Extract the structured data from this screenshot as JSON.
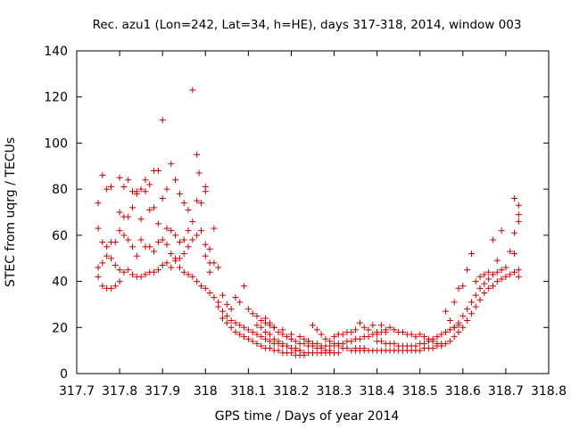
{
  "chart_data": {
    "type": "scatter",
    "title": "Rec. azu1 (Lon=242, Lat=34, h=HE), days 317-318, 2014, window 003",
    "xlabel": "GPS time / Days of year 2014",
    "ylabel": "STEC from uqrg / TECUs",
    "xlim": [
      317.7,
      318.8
    ],
    "ylim": [
      0,
      140
    ],
    "xticks": [
      {
        "v": 317.7,
        "label": "317.7"
      },
      {
        "v": 317.8,
        "label": "317.8"
      },
      {
        "v": 317.9,
        "label": "317.9"
      },
      {
        "v": 318.0,
        "label": "318"
      },
      {
        "v": 318.1,
        "label": "318.1"
      },
      {
        "v": 318.2,
        "label": "318.2"
      },
      {
        "v": 318.3,
        "label": "318.3"
      },
      {
        "v": 318.4,
        "label": "318.4"
      },
      {
        "v": 318.5,
        "label": "318.5"
      },
      {
        "v": 318.6,
        "label": "318.6"
      },
      {
        "v": 318.7,
        "label": "318.7"
      },
      {
        "v": 318.8,
        "label": "318.8"
      }
    ],
    "yticks": [
      {
        "v": 0,
        "label": "0"
      },
      {
        "v": 20,
        "label": "20"
      },
      {
        "v": 40,
        "label": "40"
      },
      {
        "v": 60,
        "label": "60"
      },
      {
        "v": 80,
        "label": "80"
      },
      {
        "v": 100,
        "label": "100"
      },
      {
        "v": 120,
        "label": "120"
      },
      {
        "v": 140,
        "label": "140"
      }
    ],
    "grid": false,
    "marker": "+",
    "color": "#cc0000",
    "points": [
      [
        317.75,
        74
      ],
      [
        317.76,
        86
      ],
      [
        317.77,
        80
      ],
      [
        317.78,
        81
      ],
      [
        317.75,
        63
      ],
      [
        317.76,
        57
      ],
      [
        317.77,
        55
      ],
      [
        317.78,
        57
      ],
      [
        317.79,
        57
      ],
      [
        317.75,
        46
      ],
      [
        317.76,
        48
      ],
      [
        317.77,
        51
      ],
      [
        317.78,
        50
      ],
      [
        317.79,
        47
      ],
      [
        317.75,
        42
      ],
      [
        317.76,
        38
      ],
      [
        317.77,
        37
      ],
      [
        317.78,
        37
      ],
      [
        317.79,
        38
      ],
      [
        317.8,
        40
      ],
      [
        317.8,
        85
      ],
      [
        317.81,
        81
      ],
      [
        317.82,
        84
      ],
      [
        317.83,
        79
      ],
      [
        317.84,
        79
      ],
      [
        317.85,
        80
      ],
      [
        317.86,
        84
      ],
      [
        317.87,
        82
      ],
      [
        317.88,
        88
      ],
      [
        317.89,
        88
      ],
      [
        317.9,
        110
      ],
      [
        317.91,
        80
      ],
      [
        317.92,
        91
      ],
      [
        317.93,
        84
      ],
      [
        317.94,
        78
      ],
      [
        317.95,
        74
      ],
      [
        317.96,
        71
      ],
      [
        317.97,
        123
      ],
      [
        317.98,
        95
      ],
      [
        317.985,
        87
      ],
      [
        317.8,
        70
      ],
      [
        317.81,
        68
      ],
      [
        317.82,
        68
      ],
      [
        317.83,
        72
      ],
      [
        317.84,
        78
      ],
      [
        317.85,
        67
      ],
      [
        317.86,
        79
      ],
      [
        317.87,
        71
      ],
      [
        317.88,
        72
      ],
      [
        317.89,
        65
      ],
      [
        317.9,
        76
      ],
      [
        317.91,
        63
      ],
      [
        317.92,
        62
      ],
      [
        317.93,
        60
      ],
      [
        317.94,
        57
      ],
      [
        317.95,
        58
      ],
      [
        317.96,
        62
      ],
      [
        317.97,
        66
      ],
      [
        317.98,
        75
      ],
      [
        317.99,
        74
      ],
      [
        317.8,
        62
      ],
      [
        317.81,
        60
      ],
      [
        317.82,
        58
      ],
      [
        317.83,
        55
      ],
      [
        317.84,
        51
      ],
      [
        317.85,
        58
      ],
      [
        317.86,
        55
      ],
      [
        317.87,
        55
      ],
      [
        317.88,
        53
      ],
      [
        317.89,
        57
      ],
      [
        317.9,
        58
      ],
      [
        317.91,
        56
      ],
      [
        317.92,
        52
      ],
      [
        317.93,
        50
      ],
      [
        317.94,
        46
      ],
      [
        317.95,
        44
      ],
      [
        317.96,
        43
      ],
      [
        317.97,
        42
      ],
      [
        317.98,
        40
      ],
      [
        317.99,
        38
      ],
      [
        317.8,
        45
      ],
      [
        317.81,
        44
      ],
      [
        317.82,
        45
      ],
      [
        317.83,
        43
      ],
      [
        317.84,
        42
      ],
      [
        317.85,
        42
      ],
      [
        317.86,
        43
      ],
      [
        317.87,
        44
      ],
      [
        317.88,
        44
      ],
      [
        317.89,
        45
      ],
      [
        317.9,
        47
      ],
      [
        317.91,
        48
      ],
      [
        317.92,
        46
      ],
      [
        317.93,
        49
      ],
      [
        317.94,
        50
      ],
      [
        317.95,
        52
      ],
      [
        317.96,
        55
      ],
      [
        317.97,
        58
      ],
      [
        317.98,
        60
      ],
      [
        317.99,
        62
      ],
      [
        318.0,
        81
      ],
      [
        318.0,
        79
      ],
      [
        318.0,
        56
      ],
      [
        318.01,
        54
      ],
      [
        318.0,
        51
      ],
      [
        318.01,
        48
      ],
      [
        318.01,
        44
      ],
      [
        318.02,
        63
      ],
      [
        318.02,
        48
      ],
      [
        318.03,
        46
      ],
      [
        318.0,
        37
      ],
      [
        318.01,
        35
      ],
      [
        318.02,
        33
      ],
      [
        318.03,
        31
      ],
      [
        318.04,
        34
      ],
      [
        318.05,
        30
      ],
      [
        318.06,
        28
      ],
      [
        318.07,
        33
      ],
      [
        318.08,
        31
      ],
      [
        318.09,
        38
      ],
      [
        318.03,
        29
      ],
      [
        318.04,
        27
      ],
      [
        318.05,
        25
      ],
      [
        318.06,
        23
      ],
      [
        318.07,
        22
      ],
      [
        318.08,
        21
      ],
      [
        318.09,
        20
      ],
      [
        318.1,
        19
      ],
      [
        318.11,
        18
      ],
      [
        318.12,
        17
      ],
      [
        318.13,
        16
      ],
      [
        318.14,
        15
      ],
      [
        318.15,
        14
      ],
      [
        318.16,
        13
      ],
      [
        318.17,
        13
      ],
      [
        318.18,
        12
      ],
      [
        318.19,
        12
      ],
      [
        318.2,
        11
      ],
      [
        318.21,
        11
      ],
      [
        318.22,
        10
      ],
      [
        318.04,
        24
      ],
      [
        318.05,
        22
      ],
      [
        318.06,
        20
      ],
      [
        318.07,
        18
      ],
      [
        318.08,
        17
      ],
      [
        318.09,
        16
      ],
      [
        318.1,
        15
      ],
      [
        318.11,
        14
      ],
      [
        318.12,
        13
      ],
      [
        318.13,
        12
      ],
      [
        318.14,
        11
      ],
      [
        318.15,
        11
      ],
      [
        318.16,
        10
      ],
      [
        318.17,
        10
      ],
      [
        318.18,
        9
      ],
      [
        318.19,
        9
      ],
      [
        318.2,
        9
      ],
      [
        318.21,
        8
      ],
      [
        318.22,
        8
      ],
      [
        318.23,
        8
      ],
      [
        318.1,
        28
      ],
      [
        318.11,
        26
      ],
      [
        318.12,
        25
      ],
      [
        318.13,
        23
      ],
      [
        318.14,
        22
      ],
      [
        318.15,
        21
      ],
      [
        318.16,
        20
      ],
      [
        318.17,
        18
      ],
      [
        318.18,
        17
      ],
      [
        318.19,
        16
      ],
      [
        318.2,
        15
      ],
      [
        318.21,
        14
      ],
      [
        318.22,
        13
      ],
      [
        318.23,
        13
      ],
      [
        318.24,
        12
      ],
      [
        318.25,
        12
      ],
      [
        318.26,
        11
      ],
      [
        318.27,
        11
      ],
      [
        318.28,
        10
      ],
      [
        318.29,
        10
      ],
      [
        318.12,
        21
      ],
      [
        318.13,
        20
      ],
      [
        318.14,
        18
      ],
      [
        318.15,
        17
      ],
      [
        318.16,
        15
      ],
      [
        318.17,
        14
      ],
      [
        318.18,
        13
      ],
      [
        318.19,
        12
      ],
      [
        318.2,
        11
      ],
      [
        318.21,
        10
      ],
      [
        318.22,
        10
      ],
      [
        318.23,
        9
      ],
      [
        318.24,
        9
      ],
      [
        318.25,
        9
      ],
      [
        318.26,
        9
      ],
      [
        318.27,
        9
      ],
      [
        318.28,
        9
      ],
      [
        318.29,
        9
      ],
      [
        318.3,
        9
      ],
      [
        318.31,
        9
      ],
      [
        318.14,
        24
      ],
      [
        318.15,
        22
      ],
      [
        318.16,
        20
      ],
      [
        318.18,
        19
      ],
      [
        318.2,
        17
      ],
      [
        318.22,
        16
      ],
      [
        318.24,
        14
      ],
      [
        318.25,
        21
      ],
      [
        318.26,
        19
      ],
      [
        318.27,
        17
      ],
      [
        318.28,
        15
      ],
      [
        318.29,
        14
      ],
      [
        318.3,
        13
      ],
      [
        318.31,
        12
      ],
      [
        318.32,
        11
      ],
      [
        318.33,
        11
      ],
      [
        318.34,
        10
      ],
      [
        318.35,
        10
      ],
      [
        318.36,
        10
      ],
      [
        318.37,
        10
      ],
      [
        318.23,
        15
      ],
      [
        318.24,
        14
      ],
      [
        318.25,
        13
      ],
      [
        318.26,
        13
      ],
      [
        318.27,
        12
      ],
      [
        318.28,
        12
      ],
      [
        318.29,
        12
      ],
      [
        318.3,
        12
      ],
      [
        318.31,
        13
      ],
      [
        318.32,
        13
      ],
      [
        318.33,
        14
      ],
      [
        318.34,
        14
      ],
      [
        318.35,
        15
      ],
      [
        318.36,
        15
      ],
      [
        318.37,
        16
      ],
      [
        318.38,
        16
      ],
      [
        318.39,
        17
      ],
      [
        318.4,
        17
      ],
      [
        318.41,
        18
      ],
      [
        318.42,
        18
      ],
      [
        318.3,
        16
      ],
      [
        318.31,
        17
      ],
      [
        318.32,
        17
      ],
      [
        318.33,
        18
      ],
      [
        318.34,
        18
      ],
      [
        318.35,
        19
      ],
      [
        318.36,
        22
      ],
      [
        318.37,
        20
      ],
      [
        318.38,
        19
      ],
      [
        318.39,
        21
      ],
      [
        318.4,
        18
      ],
      [
        318.41,
        21
      ],
      [
        318.42,
        19
      ],
      [
        318.43,
        20
      ],
      [
        318.44,
        19
      ],
      [
        318.45,
        18
      ],
      [
        318.46,
        18
      ],
      [
        318.47,
        17
      ],
      [
        318.48,
        17
      ],
      [
        318.49,
        16
      ],
      [
        318.35,
        11
      ],
      [
        318.36,
        11
      ],
      [
        318.37,
        11
      ],
      [
        318.38,
        10
      ],
      [
        318.39,
        10
      ],
      [
        318.4,
        10
      ],
      [
        318.41,
        10
      ],
      [
        318.42,
        10
      ],
      [
        318.43,
        10
      ],
      [
        318.44,
        10
      ],
      [
        318.45,
        10
      ],
      [
        318.46,
        10
      ],
      [
        318.47,
        10
      ],
      [
        318.48,
        10
      ],
      [
        318.49,
        10
      ],
      [
        318.5,
        10
      ],
      [
        318.51,
        11
      ],
      [
        318.52,
        11
      ],
      [
        318.53,
        11
      ],
      [
        318.54,
        12
      ],
      [
        318.4,
        14
      ],
      [
        318.41,
        14
      ],
      [
        318.42,
        13
      ],
      [
        318.43,
        13
      ],
      [
        318.44,
        13
      ],
      [
        318.45,
        12
      ],
      [
        318.46,
        12
      ],
      [
        318.47,
        12
      ],
      [
        318.48,
        12
      ],
      [
        318.49,
        12
      ],
      [
        318.5,
        13
      ],
      [
        318.51,
        13
      ],
      [
        318.52,
        14
      ],
      [
        318.53,
        15
      ],
      [
        318.54,
        16
      ],
      [
        318.55,
        17
      ],
      [
        318.56,
        18
      ],
      [
        318.57,
        19
      ],
      [
        318.58,
        20
      ],
      [
        318.59,
        21
      ],
      [
        318.5,
        17
      ],
      [
        318.51,
        16
      ],
      [
        318.52,
        15
      ],
      [
        318.53,
        14
      ],
      [
        318.54,
        13
      ],
      [
        318.55,
        13
      ],
      [
        318.56,
        27
      ],
      [
        318.57,
        23
      ],
      [
        318.58,
        31
      ],
      [
        318.59,
        37
      ],
      [
        318.6,
        38
      ],
      [
        318.61,
        45
      ],
      [
        318.62,
        52
      ],
      [
        318.63,
        40
      ],
      [
        318.64,
        42
      ],
      [
        318.65,
        43
      ],
      [
        318.66,
        44
      ],
      [
        318.67,
        58
      ],
      [
        318.68,
        49
      ],
      [
        318.69,
        62
      ],
      [
        318.55,
        12
      ],
      [
        318.56,
        13
      ],
      [
        318.57,
        14
      ],
      [
        318.58,
        16
      ],
      [
        318.59,
        18
      ],
      [
        318.6,
        20
      ],
      [
        318.61,
        23
      ],
      [
        318.62,
        26
      ],
      [
        318.63,
        29
      ],
      [
        318.64,
        32
      ],
      [
        318.65,
        35
      ],
      [
        318.66,
        37
      ],
      [
        318.67,
        38
      ],
      [
        318.68,
        40
      ],
      [
        318.69,
        41
      ],
      [
        318.7,
        42
      ],
      [
        318.71,
        43
      ],
      [
        318.72,
        44
      ],
      [
        318.73,
        45
      ],
      [
        318.73,
        42
      ],
      [
        318.58,
        20
      ],
      [
        318.59,
        22
      ],
      [
        318.6,
        25
      ],
      [
        318.61,
        28
      ],
      [
        318.62,
        31
      ],
      [
        318.63,
        34
      ],
      [
        318.64,
        37
      ],
      [
        318.65,
        39
      ],
      [
        318.66,
        41
      ],
      [
        318.67,
        43
      ],
      [
        318.68,
        44
      ],
      [
        318.69,
        45
      ],
      [
        318.7,
        46
      ],
      [
        318.71,
        53
      ],
      [
        318.72,
        61
      ],
      [
        318.72,
        76
      ],
      [
        318.73,
        73
      ],
      [
        318.73,
        69
      ],
      [
        318.73,
        66
      ],
      [
        318.72,
        52
      ]
    ]
  }
}
